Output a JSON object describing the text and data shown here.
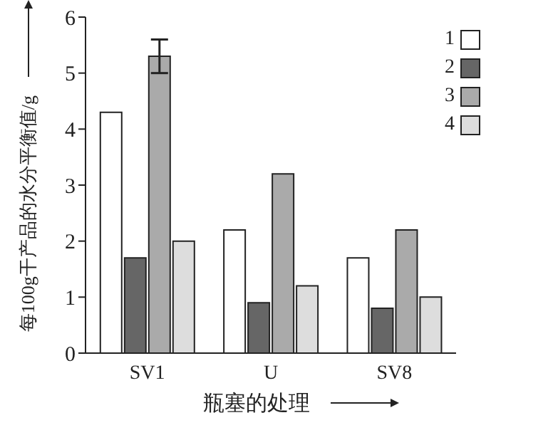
{
  "chart_data": {
    "type": "bar",
    "xlabel": "瓶塞的处理",
    "ylabel": "每100g干产品的水分平衡值/g",
    "categories": [
      "SV1",
      "U",
      "SV8"
    ],
    "series": [
      {
        "name": "1",
        "color": "#ffffff",
        "values": [
          4.3,
          2.2,
          1.7
        ]
      },
      {
        "name": "2",
        "color": "#666666",
        "values": [
          1.7,
          0.9,
          0.8
        ]
      },
      {
        "name": "3",
        "color": "#aaaaaa",
        "values": [
          5.3,
          3.2,
          2.2
        ],
        "errors": [
          0.3,
          null,
          null
        ]
      },
      {
        "name": "4",
        "color": "#dddddd",
        "values": [
          2.0,
          1.2,
          1.0
        ]
      }
    ],
    "ylim": [
      0,
      6
    ],
    "yticks": [
      0,
      1,
      2,
      3,
      4,
      5,
      6
    ],
    "grid": false,
    "legend": "top right"
  }
}
